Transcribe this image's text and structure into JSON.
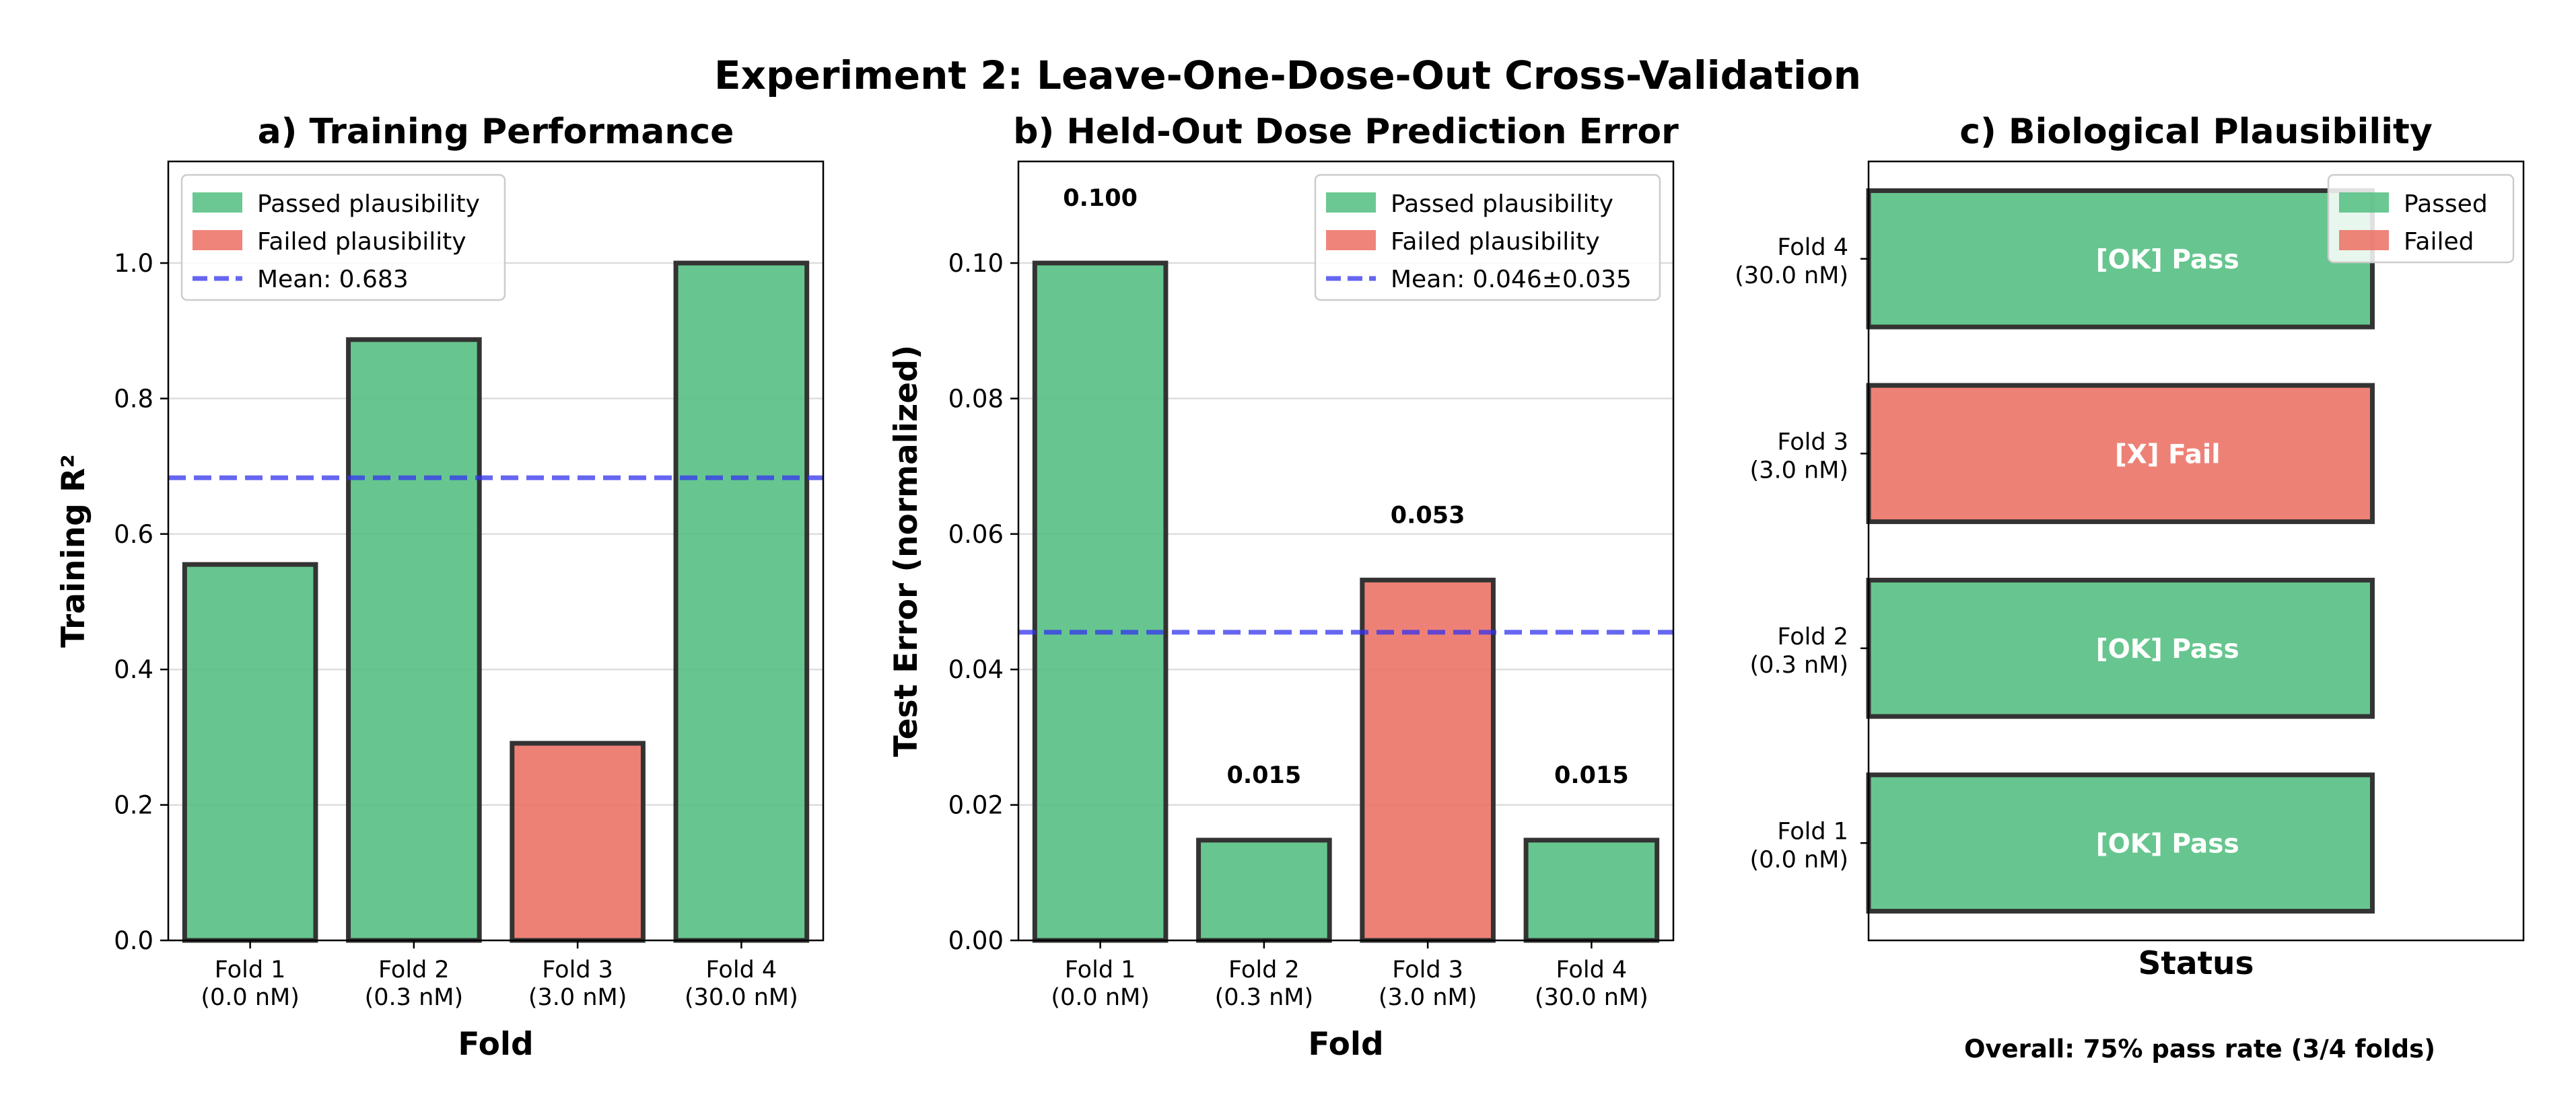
{
  "suptitle": "Experiment 2: Leave-One-Dose-Out Cross-Validation",
  "footnote": "Overall: 75% pass rate (3/4 folds)",
  "colors": {
    "passed": "#52be80",
    "failed": "#ec7063",
    "mean_line": "#3333ee",
    "bar_edge": "#333333"
  },
  "chart_data": [
    {
      "type": "bar",
      "title": "a) Training Performance",
      "xlabel": "Fold",
      "ylabel": "Training R²",
      "categories": [
        [
          "Fold 1",
          "(0.0 nM)"
        ],
        [
          "Fold 2",
          "(0.3 nM)"
        ],
        [
          "Fold 3",
          "(3.0 nM)"
        ],
        [
          "Fold 4",
          "(30.0 nM)"
        ]
      ],
      "values": [
        0.555,
        0.887,
        0.291,
        1.0
      ],
      "status": [
        "passed",
        "passed",
        "failed",
        "passed"
      ],
      "mean": 0.683,
      "ylim": [
        0,
        1.15
      ],
      "yticks": [
        "0.0",
        "0.2",
        "0.4",
        "0.6",
        "0.8",
        "1.0"
      ],
      "ytick_values": [
        0,
        0.2,
        0.4,
        0.6,
        0.8,
        1.0
      ],
      "grid": "y",
      "legend": {
        "placement": "top-left",
        "entries": [
          {
            "label": "Passed plausibility",
            "kind": "passed"
          },
          {
            "label": "Failed plausibility",
            "kind": "failed"
          },
          {
            "label": "Mean: 0.683",
            "kind": "mean"
          }
        ]
      }
    },
    {
      "type": "bar",
      "title": "b) Held-Out Dose Prediction Error",
      "xlabel": "Fold",
      "ylabel": "Test Error (normalized)",
      "categories": [
        [
          "Fold 1",
          "(0.0 nM)"
        ],
        [
          "Fold 2",
          "(0.3 nM)"
        ],
        [
          "Fold 3",
          "(3.0 nM)"
        ],
        [
          "Fold 4",
          "(30.0 nM)"
        ]
      ],
      "values": [
        0.1,
        0.0148,
        0.0532,
        0.0148
      ],
      "value_labels": [
        "0.100",
        "0.015",
        "0.053",
        "0.015"
      ],
      "status": [
        "passed",
        "passed",
        "failed",
        "passed"
      ],
      "mean": 0.0455,
      "ylim": [
        0,
        0.115
      ],
      "yticks": [
        "0.00",
        "0.02",
        "0.04",
        "0.06",
        "0.08",
        "0.10"
      ],
      "ytick_values": [
        0,
        0.02,
        0.04,
        0.06,
        0.08,
        0.1
      ],
      "grid": "y",
      "legend": {
        "placement": "top-right",
        "entries": [
          {
            "label": "Passed plausibility",
            "kind": "passed"
          },
          {
            "label": "Failed plausibility",
            "kind": "failed"
          },
          {
            "label": "Mean: 0.046±0.035",
            "kind": "mean"
          }
        ]
      }
    },
    {
      "type": "bar",
      "orientation": "horizontal",
      "title": "c) Biological Plausibility",
      "xlabel": "Status",
      "categories": [
        [
          "Fold 1",
          "(0.0 nM)"
        ],
        [
          "Fold 2",
          "(0.3 nM)"
        ],
        [
          "Fold 3",
          "(3.0 nM)"
        ],
        [
          "Fold 4",
          "(30.0 nM)"
        ]
      ],
      "values": [
        1,
        1,
        1,
        1
      ],
      "status": [
        "passed",
        "passed",
        "failed",
        "passed"
      ],
      "bar_labels": [
        "[OK] Pass",
        "[OK] Pass",
        "[X] Fail",
        "[OK] Pass"
      ],
      "xlim": [
        0,
        1.3
      ],
      "legend": {
        "placement": "top-right",
        "entries": [
          {
            "label": "Passed",
            "kind": "passed"
          },
          {
            "label": "Failed",
            "kind": "failed"
          }
        ]
      }
    }
  ]
}
